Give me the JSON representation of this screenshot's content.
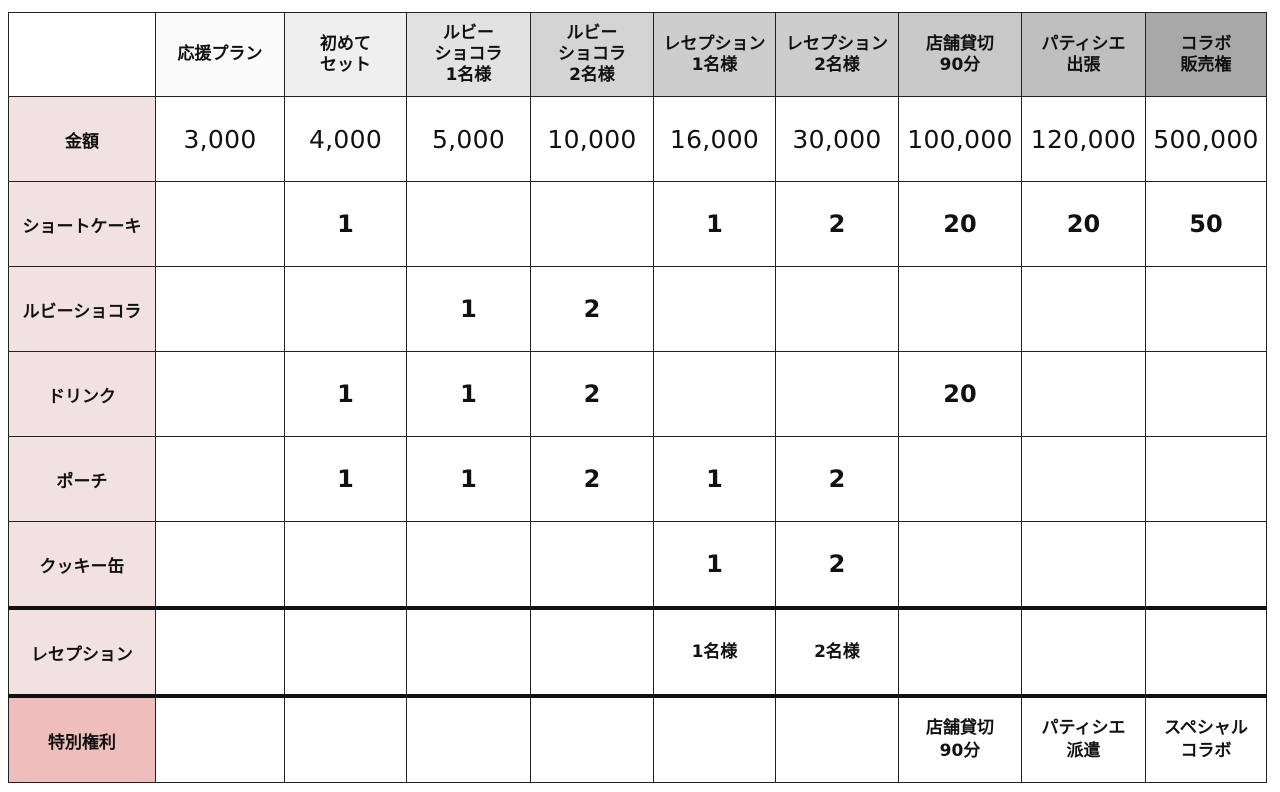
{
  "header": {
    "corner": "",
    "columns": [
      {
        "label": "応援プラン",
        "bg": "#fafafa"
      },
      {
        "label": "初めて\nセット",
        "bg": "#efefef"
      },
      {
        "label": "ルビー\nショコラ\n1名様",
        "bg": "#e2e2e2"
      },
      {
        "label": "ルビー\nショコラ\n2名様",
        "bg": "#d4d4d4"
      },
      {
        "label": "レセプション\n1名様",
        "bg": "#cdcdcd"
      },
      {
        "label": "レセプション\n2名様",
        "bg": "#cdcdcd"
      },
      {
        "label": "店舗貸切\n90分",
        "bg": "#c9c9c9"
      },
      {
        "label": "パティシエ\n出張",
        "bg": "#bfbfbf"
      },
      {
        "label": "コラボ\n販売権",
        "bg": "#a8a8a8"
      }
    ]
  },
  "rows": [
    {
      "label": "金額",
      "kind": "price",
      "cells": [
        "3,000",
        "4,000",
        "5,000",
        "10,000",
        "16,000",
        "30,000",
        "100,000",
        "120,000",
        "500,000"
      ]
    },
    {
      "label": "ショートケーキ",
      "kind": "qty",
      "cells": [
        "",
        "1",
        "",
        "",
        "1",
        "2",
        "20",
        "20",
        "50"
      ]
    },
    {
      "label": "ルビーショコラ",
      "kind": "qty",
      "cells": [
        "",
        "",
        "1",
        "2",
        "",
        "",
        "",
        "",
        ""
      ]
    },
    {
      "label": "ドリンク",
      "kind": "qty",
      "cells": [
        "",
        "1",
        "1",
        "2",
        "",
        "",
        "20",
        "",
        ""
      ]
    },
    {
      "label": "ポーチ",
      "kind": "qty",
      "cells": [
        "",
        "1",
        "1",
        "2",
        "1",
        "2",
        "",
        "",
        ""
      ]
    },
    {
      "label": "クッキー缶",
      "kind": "qty",
      "cells": [
        "",
        "",
        "",
        "",
        "1",
        "2",
        "",
        "",
        ""
      ]
    },
    {
      "label": "レセプション",
      "kind": "txt",
      "cells": [
        "",
        "",
        "",
        "",
        "1名様",
        "2名様",
        "",
        "",
        ""
      ]
    },
    {
      "label": "特別権利",
      "kind": "txt",
      "cells": [
        "",
        "",
        "",
        "",
        "",
        "",
        "店舗貸切\n90分",
        "パティシエ\n派遣",
        "スペシャル\nコラボ"
      ]
    }
  ],
  "colors": {
    "label_bg": "#f2e1e1",
    "special_label_bg": "#f0bdbd",
    "border": "#222222"
  }
}
